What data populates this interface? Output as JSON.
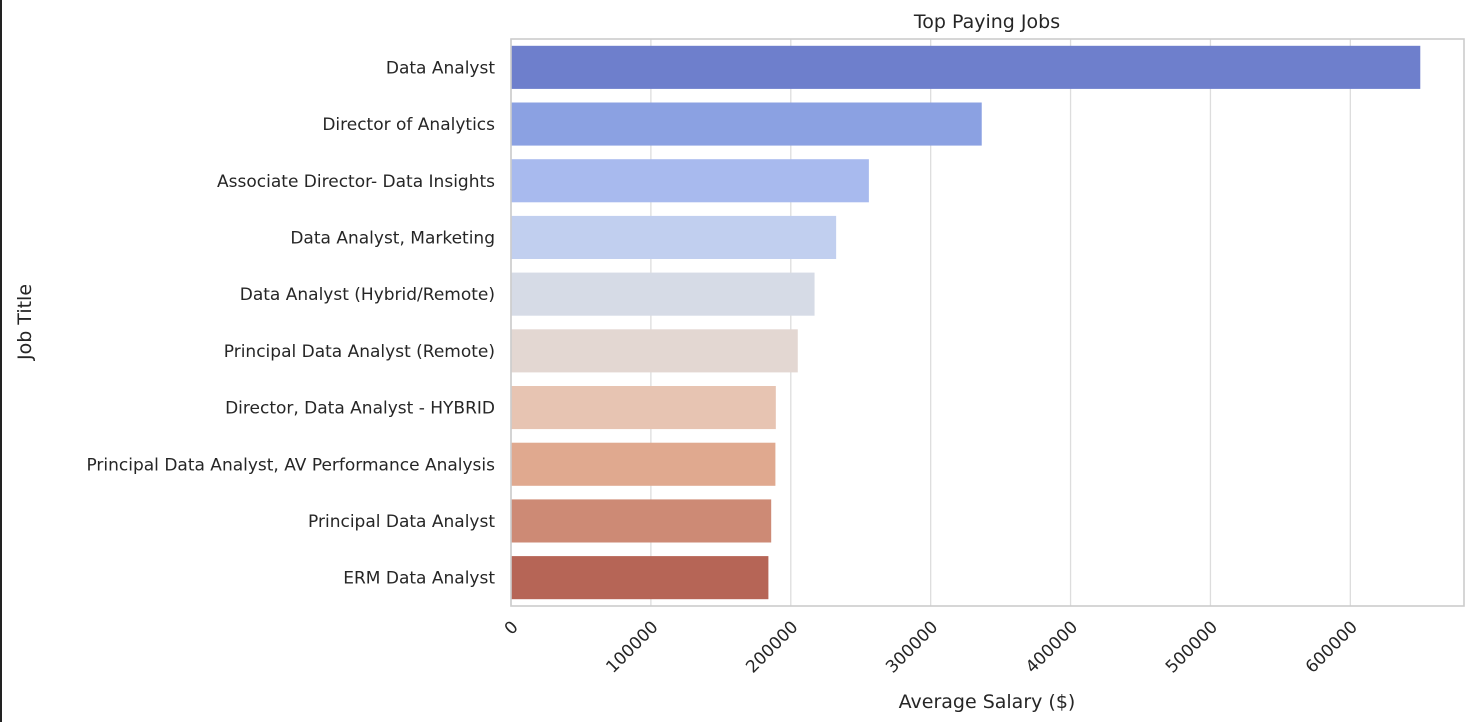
{
  "chart_data": {
    "type": "bar",
    "orientation": "horizontal",
    "title": "Top Paying Jobs",
    "xlabel": "Average Salary ($)",
    "ylabel": "Job Title",
    "categories": [
      "Data Analyst",
      "Director of Analytics",
      "Associate Director- Data Insights",
      "Data Analyst, Marketing",
      "Data Analyst (Hybrid/Remote)",
      "Principal Data Analyst (Remote)",
      "Director, Data Analyst - HYBRID",
      "Principal Data Analyst, AV Performance Analysis",
      "Principal Data Analyst",
      "ERM Data Analyst"
    ],
    "values": [
      650000,
      336500,
      255830,
      232423,
      217000,
      205000,
      189309,
      189000,
      186000,
      184000
    ],
    "colors": [
      "#6e7fcc",
      "#8ba1e2",
      "#a8baee",
      "#c1cfef",
      "#d6dbe6",
      "#e3d7d2",
      "#e7c4b2",
      "#e0a98f",
      "#cd8a75",
      "#b66556"
    ],
    "xticks": [
      0,
      100000,
      200000,
      300000,
      400000,
      500000,
      600000
    ],
    "xtick_labels": [
      "0",
      "100000",
      "200000",
      "300000",
      "400000",
      "500000",
      "600000"
    ],
    "xlim": [
      0,
      681250
    ],
    "grid": true
  }
}
